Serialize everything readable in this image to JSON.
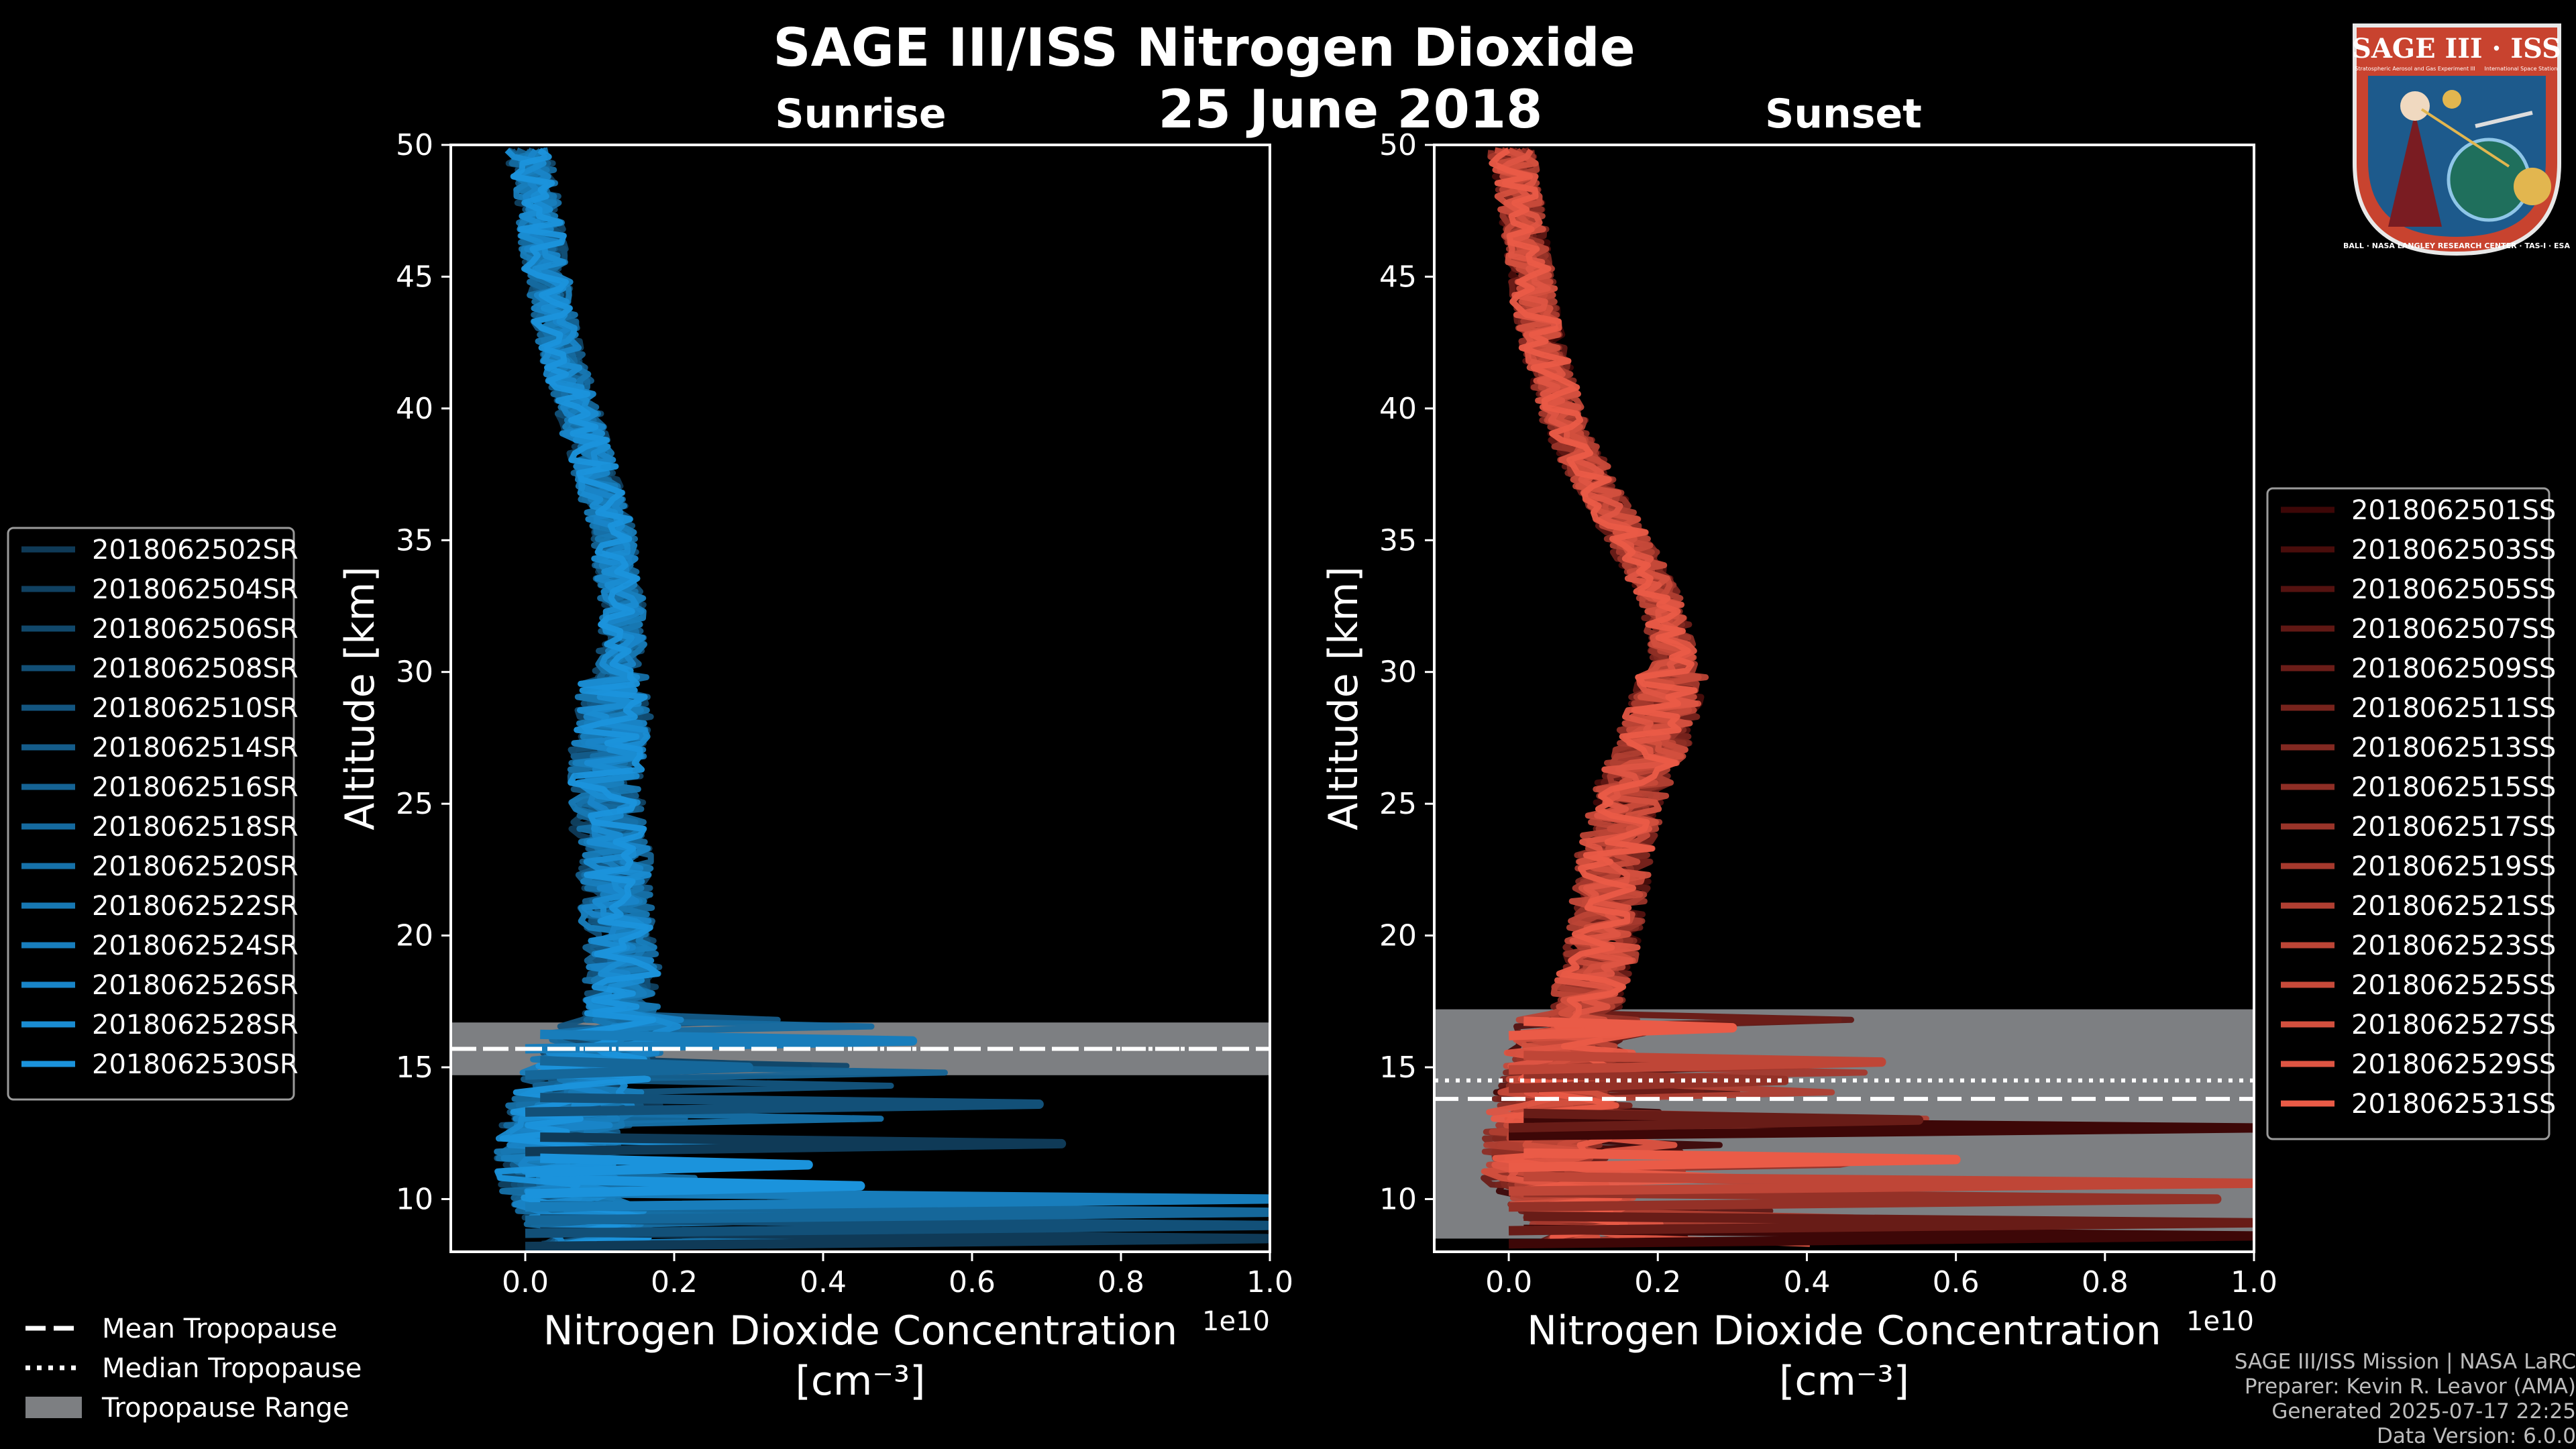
{
  "figure": {
    "title_line1": "SAGE III/ISS Nitrogen Dioxide",
    "title_line2": "25 June 2018",
    "footer": [
      "SAGE III/ISS Mission | NASA LaRC",
      "Preparer: Kevin R. Leavor (AMA)",
      "Generated 2025-07-17 22:25",
      "Data Version: 6.0.0"
    ],
    "logo": {
      "top_text": "SAGE III · ISS",
      "sub_left": "Stratospheric Aerosol and Gas Experiment III",
      "sub_right": "International Space Station",
      "ring_text": "BALL · NASA LANGLEY RESEARCH CENTER · TAS-I · ESA",
      "colors": {
        "ring": "#c8432f",
        "body": "#1d5a8c",
        "gold": "#e2b64f"
      }
    },
    "tropopause_legend": [
      {
        "label": "Mean Tropopause",
        "style": "dashed"
      },
      {
        "label": "Median Tropopause",
        "style": "dotted"
      },
      {
        "label": "Tropopause Range",
        "style": "band"
      }
    ],
    "colors": {
      "background": "#000000",
      "axes": "#ffffff",
      "band": "#7d7f82",
      "sunrise": "#1a8ad0",
      "sunset": "#e5523f"
    }
  },
  "chart_data": [
    {
      "type": "line",
      "title": "Sunrise",
      "xlabel": "Nitrogen Dioxide Concentration",
      "xunit": "[cm⁻³]",
      "ylabel": "Altitude [km]",
      "xlim": [
        -0.1,
        1.0
      ],
      "ylim": [
        8,
        50
      ],
      "x_offset_text": "1e10",
      "xticks": [
        0.0,
        0.2,
        0.4,
        0.6,
        0.8,
        1.0
      ],
      "xtick_labels": [
        "0.0",
        "0.2",
        "0.4",
        "0.6",
        "0.8",
        "1.0"
      ],
      "yticks": [
        10,
        15,
        20,
        25,
        30,
        35,
        40,
        45,
        50
      ],
      "series_color_dark": "#0f3a57",
      "series_color_light": "#1b93dc",
      "tropopause": {
        "mean": 15.7,
        "median": 15.7,
        "range": [
          14.7,
          16.7
        ]
      },
      "mean_profile": {
        "altitude": [
          8.5,
          9,
          10,
          11,
          12,
          13,
          14,
          15,
          16,
          17,
          18,
          19,
          20,
          21,
          22,
          23,
          24,
          25,
          26,
          27,
          28,
          29,
          30,
          31,
          32,
          33,
          34,
          35,
          36,
          37,
          38,
          39,
          40,
          41,
          42,
          43,
          44,
          45,
          46,
          47,
          48,
          49,
          50
        ],
        "value": [
          0.1,
          0.09,
          0.06,
          0.05,
          0.05,
          0.06,
          0.07,
          0.09,
          0.12,
          0.13,
          0.13,
          0.13,
          0.13,
          0.12,
          0.12,
          0.12,
          0.11,
          0.11,
          0.11,
          0.11,
          0.12,
          0.12,
          0.12,
          0.13,
          0.13,
          0.13,
          0.12,
          0.12,
          0.11,
          0.1,
          0.09,
          0.08,
          0.07,
          0.06,
          0.05,
          0.04,
          0.035,
          0.03,
          0.025,
          0.02,
          0.015,
          0.01,
          0.0
        ]
      },
      "series": [
        "2018062502SR",
        "2018062504SR",
        "2018062506SR",
        "2018062508SR",
        "2018062510SR",
        "2018062514SR",
        "2018062516SR",
        "2018062518SR",
        "2018062520SR",
        "2018062522SR",
        "2018062524SR",
        "2018062526SR",
        "2018062528SR",
        "2018062530SR"
      ],
      "spikes": [
        {
          "alt": 8.5,
          "x": 1.0
        },
        {
          "alt": 9.0,
          "x": 1.0
        },
        {
          "alt": 9.5,
          "x": 1.0
        },
        {
          "alt": 10.0,
          "x": 1.0
        },
        {
          "alt": 10.5,
          "x": 0.45
        },
        {
          "alt": 12.1,
          "x": 0.72
        },
        {
          "alt": 13.6,
          "x": 0.69
        },
        {
          "alt": 15.0,
          "x": 0.3
        },
        {
          "alt": 16.0,
          "x": 0.52
        },
        {
          "alt": 11.3,
          "x": 0.38
        }
      ]
    },
    {
      "type": "line",
      "title": "Sunset",
      "xlabel": "Nitrogen Dioxide Concentration",
      "xunit": "[cm⁻³]",
      "ylabel": "Altitude [km]",
      "xlim": [
        -0.1,
        1.0
      ],
      "ylim": [
        8,
        50
      ],
      "x_offset_text": "1e10",
      "xticks": [
        0.0,
        0.2,
        0.4,
        0.6,
        0.8,
        1.0
      ],
      "xtick_labels": [
        "0.0",
        "0.2",
        "0.4",
        "0.6",
        "0.8",
        "1.0"
      ],
      "yticks": [
        10,
        15,
        20,
        25,
        30,
        35,
        40,
        45,
        50
      ],
      "series_color_dark": "#3d0707",
      "series_color_light": "#ea5b47",
      "tropopause": {
        "mean": 13.8,
        "median": 14.5,
        "range": [
          8.5,
          17.2
        ]
      },
      "mean_profile": {
        "altitude": [
          8.5,
          9,
          10,
          11,
          12,
          13,
          14,
          15,
          16,
          17,
          18,
          19,
          20,
          21,
          22,
          23,
          24,
          25,
          26,
          27,
          28,
          29,
          30,
          31,
          32,
          33,
          34,
          35,
          36,
          37,
          38,
          39,
          40,
          41,
          42,
          43,
          44,
          45,
          46,
          47,
          48,
          49,
          50
        ],
        "value": [
          0.15,
          0.12,
          0.08,
          0.05,
          0.05,
          0.06,
          0.07,
          0.08,
          0.09,
          0.1,
          0.11,
          0.12,
          0.13,
          0.13,
          0.14,
          0.14,
          0.15,
          0.16,
          0.17,
          0.19,
          0.2,
          0.21,
          0.22,
          0.22,
          0.21,
          0.2,
          0.18,
          0.16,
          0.14,
          0.12,
          0.1,
          0.08,
          0.07,
          0.06,
          0.05,
          0.04,
          0.035,
          0.03,
          0.025,
          0.02,
          0.015,
          0.01,
          0.0
        ]
      },
      "series": [
        "2018062501SS",
        "2018062503SS",
        "2018062505SS",
        "2018062507SS",
        "2018062509SS",
        "2018062511SS",
        "2018062513SS",
        "2018062515SS",
        "2018062517SS",
        "2018062519SS",
        "2018062521SS",
        "2018062523SS",
        "2018062525SS",
        "2018062527SS",
        "2018062529SS",
        "2018062531SS"
      ],
      "spikes": [
        {
          "alt": 8.6,
          "x": 1.0
        },
        {
          "alt": 9.1,
          "x": 1.0
        },
        {
          "alt": 10.0,
          "x": 0.95
        },
        {
          "alt": 10.6,
          "x": 1.0
        },
        {
          "alt": 11.5,
          "x": 0.6
        },
        {
          "alt": 12.7,
          "x": 1.0
        },
        {
          "alt": 13.0,
          "x": 0.55
        },
        {
          "alt": 14.5,
          "x": 0.37
        },
        {
          "alt": 15.2,
          "x": 0.5
        },
        {
          "alt": 16.5,
          "x": 0.3
        }
      ]
    }
  ]
}
